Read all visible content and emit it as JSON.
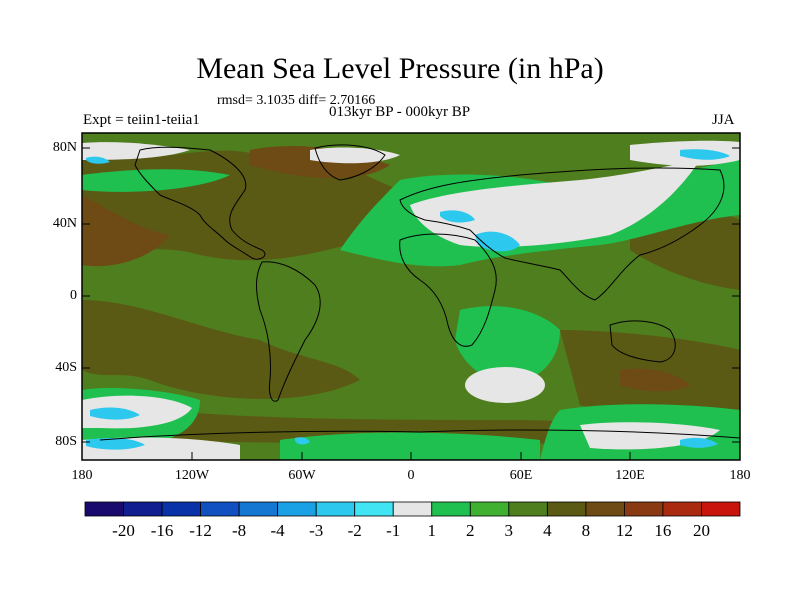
{
  "title": "Mean Sea Level Pressure (in hPa)",
  "stats_line": "rmsd= 3.1035 diff= 2.70166",
  "experiment_label": "Expt = teiin1-teiia1",
  "period_label": "013kyr BP - 000kyr BP",
  "season_label": "JJA",
  "colors": {
    "ocean_base": "#4a5a18",
    "land_outline": "#000000"
  },
  "chart_data": {
    "type": "heatmap",
    "title": "Mean Sea Level Pressure (in hPa)",
    "variable": "Mean Sea Level Pressure difference",
    "units": "hPa",
    "x_range": [
      -180,
      180
    ],
    "y_range": [
      -90,
      90
    ],
    "x_ticks": [
      "180",
      "120W",
      "60W",
      "0",
      "60E",
      "120E",
      "180"
    ],
    "x_tick_values": [
      -180,
      -120,
      -60,
      0,
      60,
      120,
      180
    ],
    "y_ticks": [
      "80N",
      "40N",
      "0",
      "40S",
      "80S"
    ],
    "y_tick_values": [
      80,
      40,
      0,
      -40,
      -80
    ],
    "colorbar": {
      "levels": [
        "-20",
        "-16",
        "-12",
        "-8",
        "-4",
        "-3",
        "-2",
        "-1",
        "1",
        "2",
        "3",
        "4",
        "8",
        "12",
        "16",
        "20"
      ],
      "colors": [
        "#1a0a6e",
        "#101e90",
        "#0a32a8",
        "#1050c0",
        "#1478d2",
        "#1aa0e4",
        "#2cc8ee",
        "#40e4f2",
        "#e6e6e6",
        "#20c050",
        "#40b030",
        "#4e7e1e",
        "#5a5a14",
        "#6e4a14",
        "#8a3a12",
        "#aa2a10",
        "#c8140c"
      ]
    }
  }
}
